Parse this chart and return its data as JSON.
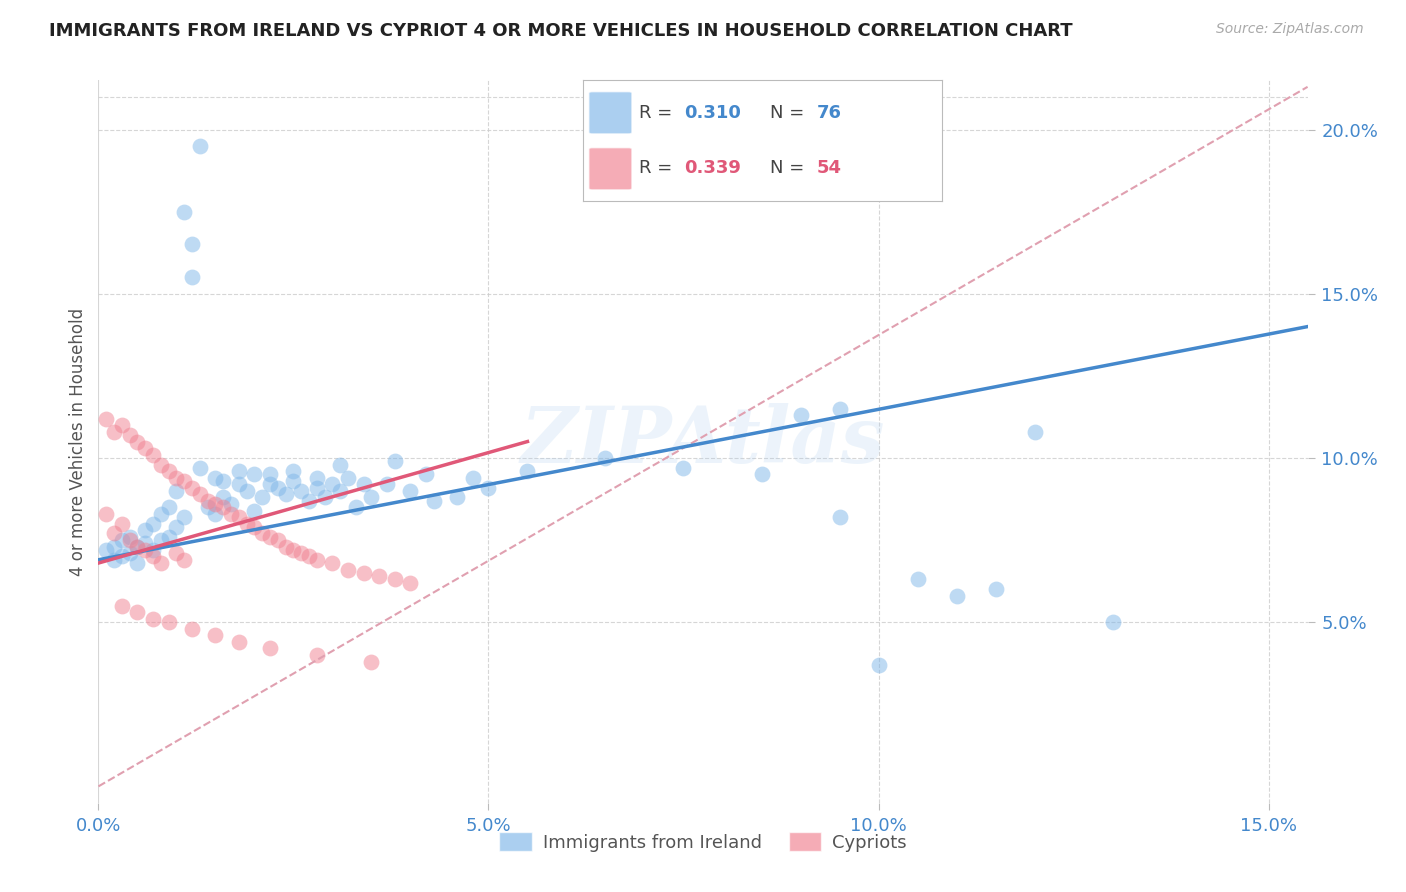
{
  "title": "IMMIGRANTS FROM IRELAND VS CYPRIOT 4 OR MORE VEHICLES IN HOUSEHOLD CORRELATION CHART",
  "source": "Source: ZipAtlas.com",
  "ylabel": "4 or more Vehicles in Household",
  "xlim": [
    0.0,
    0.155
  ],
  "ylim": [
    -0.005,
    0.215
  ],
  "legend_series": [
    {
      "label": "Immigrants from Ireland",
      "R": "0.310",
      "N": "76",
      "color": "#7EB6E8"
    },
    {
      "label": "Cypriots",
      "R": "0.339",
      "N": "54",
      "color": "#F4A0B0"
    }
  ],
  "watermark": "ZIPAtlas",
  "blue_line": {
    "x0": 0.0,
    "y0": 0.069,
    "x1": 0.155,
    "y1": 0.14
  },
  "pink_dashed_line": {
    "x0": 0.0,
    "y0": 0.0,
    "x1": 0.155,
    "y1": 0.213
  },
  "pink_solid_line_x": [
    0.0,
    0.055
  ],
  "pink_solid_line_y": [
    0.068,
    0.105
  ],
  "background_color": "#FFFFFF",
  "scatter_color_blue": "#7EB6E8",
  "scatter_color_pink": "#F08090",
  "trend_color_blue": "#4488CC",
  "trend_color_pink": "#E05878",
  "trend_color_pink_dashed": "#E0A0B0",
  "grid_color": "#CCCCCC",
  "title_color": "#222222",
  "axis_label_color": "#555555",
  "tick_label_color_right": "#4488CC",
  "tick_label_color_bottom": "#4488CC",
  "x_ticks": [
    0.0,
    0.05,
    0.1,
    0.15
  ],
  "y_ticks_right": [
    0.05,
    0.1,
    0.15,
    0.2
  ],
  "blue_scatter_x": [
    0.001,
    0.002,
    0.002,
    0.003,
    0.003,
    0.004,
    0.004,
    0.005,
    0.005,
    0.006,
    0.006,
    0.007,
    0.007,
    0.008,
    0.008,
    0.009,
    0.009,
    0.01,
    0.01,
    0.011,
    0.011,
    0.012,
    0.012,
    0.013,
    0.014,
    0.015,
    0.016,
    0.017,
    0.018,
    0.019,
    0.02,
    0.021,
    0.022,
    0.023,
    0.024,
    0.025,
    0.026,
    0.027,
    0.028,
    0.029,
    0.03,
    0.031,
    0.032,
    0.033,
    0.035,
    0.037,
    0.04,
    0.043,
    0.046,
    0.05,
    0.022,
    0.018,
    0.015,
    0.013,
    0.016,
    0.02,
    0.025,
    0.028,
    0.031,
    0.034,
    0.038,
    0.042,
    0.048,
    0.055,
    0.065,
    0.075,
    0.085,
    0.095,
    0.105,
    0.115,
    0.09,
    0.12,
    0.1,
    0.13,
    0.095,
    0.11
  ],
  "blue_scatter_y": [
    0.072,
    0.069,
    0.073,
    0.07,
    0.075,
    0.071,
    0.076,
    0.073,
    0.068,
    0.074,
    0.078,
    0.072,
    0.08,
    0.075,
    0.083,
    0.076,
    0.085,
    0.079,
    0.09,
    0.082,
    0.175,
    0.165,
    0.155,
    0.195,
    0.085,
    0.083,
    0.088,
    0.086,
    0.092,
    0.09,
    0.084,
    0.088,
    0.092,
    0.091,
    0.089,
    0.093,
    0.09,
    0.087,
    0.091,
    0.088,
    0.092,
    0.09,
    0.094,
    0.085,
    0.088,
    0.092,
    0.09,
    0.087,
    0.088,
    0.091,
    0.095,
    0.096,
    0.094,
    0.097,
    0.093,
    0.095,
    0.096,
    0.094,
    0.098,
    0.092,
    0.099,
    0.095,
    0.094,
    0.096,
    0.1,
    0.097,
    0.095,
    0.082,
    0.063,
    0.06,
    0.113,
    0.108,
    0.037,
    0.05,
    0.115,
    0.058
  ],
  "pink_scatter_x": [
    0.001,
    0.001,
    0.002,
    0.002,
    0.003,
    0.003,
    0.004,
    0.004,
    0.005,
    0.005,
    0.006,
    0.006,
    0.007,
    0.007,
    0.008,
    0.008,
    0.009,
    0.01,
    0.01,
    0.011,
    0.011,
    0.012,
    0.013,
    0.014,
    0.015,
    0.016,
    0.017,
    0.018,
    0.019,
    0.02,
    0.021,
    0.022,
    0.023,
    0.024,
    0.025,
    0.026,
    0.027,
    0.028,
    0.03,
    0.032,
    0.034,
    0.036,
    0.038,
    0.04,
    0.003,
    0.005,
    0.007,
    0.009,
    0.012,
    0.015,
    0.018,
    0.022,
    0.028,
    0.035
  ],
  "pink_scatter_y": [
    0.112,
    0.083,
    0.108,
    0.077,
    0.11,
    0.08,
    0.107,
    0.075,
    0.105,
    0.073,
    0.103,
    0.072,
    0.101,
    0.07,
    0.098,
    0.068,
    0.096,
    0.094,
    0.071,
    0.093,
    0.069,
    0.091,
    0.089,
    0.087,
    0.086,
    0.085,
    0.083,
    0.082,
    0.08,
    0.079,
    0.077,
    0.076,
    0.075,
    0.073,
    0.072,
    0.071,
    0.07,
    0.069,
    0.068,
    0.066,
    0.065,
    0.064,
    0.063,
    0.062,
    0.055,
    0.053,
    0.051,
    0.05,
    0.048,
    0.046,
    0.044,
    0.042,
    0.04,
    0.038
  ]
}
